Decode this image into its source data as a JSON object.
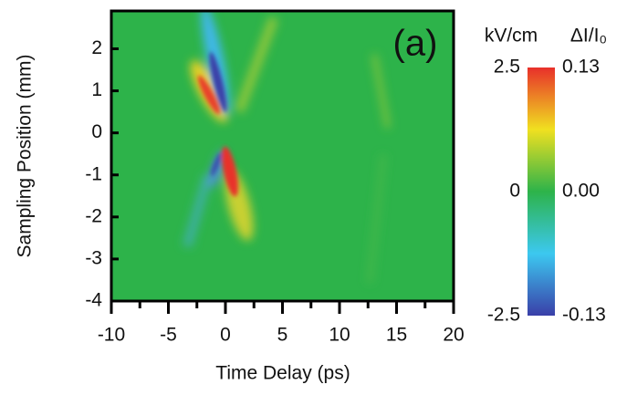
{
  "chart_data": {
    "type": "heatmap",
    "annotation": "(a)",
    "xlabel": "Time Delay (ps)",
    "ylabel": "Sampling Position (mm)",
    "xlim": [
      -10,
      20
    ],
    "xticks": [
      -10,
      -5,
      0,
      5,
      10,
      15,
      20
    ],
    "ylim": [
      -4,
      2.9
    ],
    "yticks": [
      -4,
      -3,
      -2,
      -1,
      0,
      1,
      2
    ],
    "colorbar": {
      "label": "kV/cm",
      "lim": [
        -2.5,
        2.5
      ],
      "ticks": [
        -2.5,
        0,
        2.5
      ],
      "colors": [
        "#3a3fa8",
        "#3cc8f0",
        "#2db34a",
        "#f0e020",
        "#e8302a"
      ]
    },
    "colorbar2": {
      "label": "ΔI/I₀",
      "lim": [
        -0.13,
        0.13
      ],
      "ticks": [
        -0.13,
        {
          "value": 0,
          "label": "0.00"
        },
        0.13
      ]
    }
  }
}
